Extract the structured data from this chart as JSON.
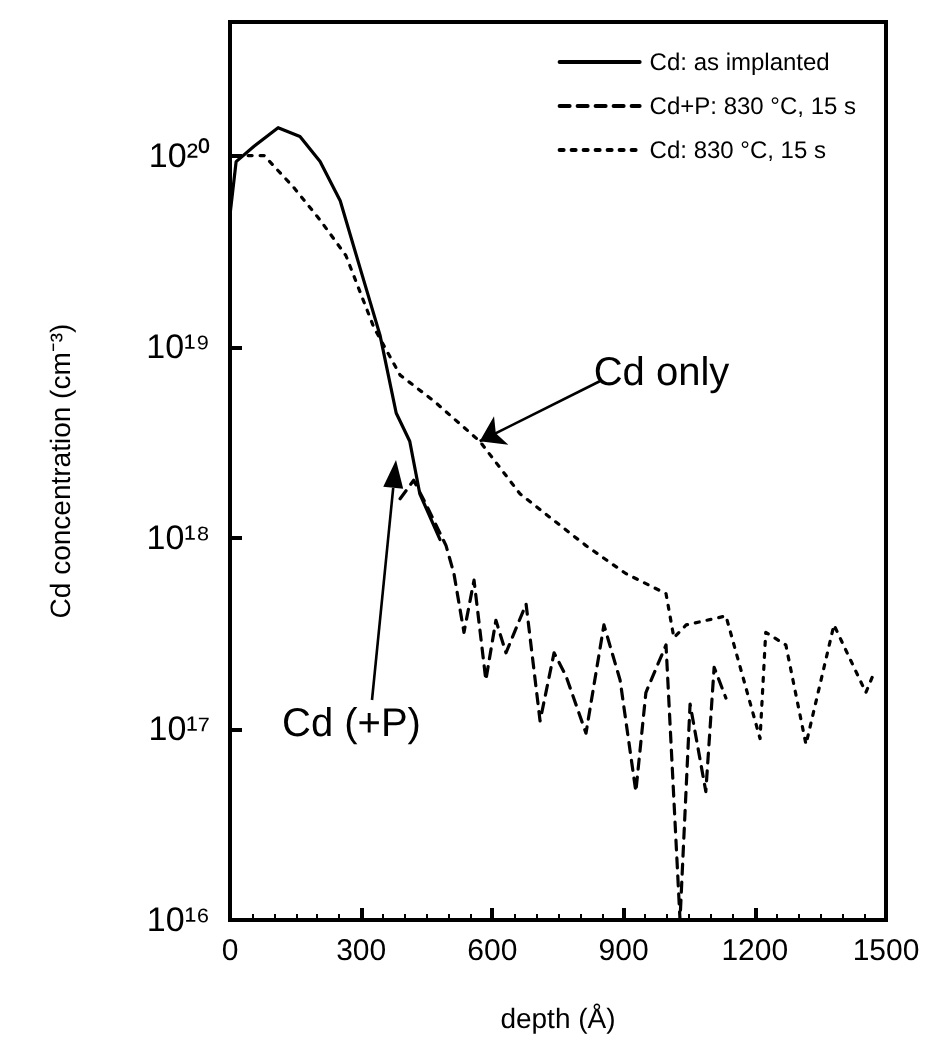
{
  "chart_data": {
    "type": "line",
    "xlabel": "depth (Å)",
    "ylabel": "Cd concentration (cm⁻³)",
    "xlim": [
      0,
      1500
    ],
    "xticks": [
      0,
      300,
      600,
      900,
      1200,
      1500
    ],
    "ylim": [
      1e+16,
      5e+20
    ],
    "log": "y",
    "yticks": [
      {
        "value": 1e+16,
        "label": "10¹⁶"
      },
      {
        "value": 1e+17,
        "label": "10¹⁷"
      },
      {
        "value": 1e+18,
        "label": "10¹⁸"
      },
      {
        "value": 1e+19,
        "label": "10¹⁹"
      },
      {
        "value": 1e+20,
        "label": "10²⁰"
      }
    ],
    "grid": false,
    "legend": "top right",
    "marker": "none",
    "series": [
      {
        "name": "Cd: as implanted",
        "color": "#000000",
        "line_style": "solid",
        "x": [
          0,
          14,
          55,
          110,
          160,
          206,
          252,
          297,
          343,
          380,
          411,
          434,
          480
        ],
        "values": [
          4.9e+19,
          9.3e+19,
          1.12e+20,
          1.4e+20,
          1.26e+20,
          9.3e+19,
          5.8e+19,
          2.6e+19,
          1.15e+19,
          4.5e+18,
          3.2e+18,
          1.7e+18,
          9.8e+17
        ]
      },
      {
        "name": "Cd+P: 830 °C, 15 s",
        "color": "#000000",
        "line_style": "dashed",
        "x": [
          389,
          420,
          448,
          494,
          512,
          535,
          558,
          585,
          608,
          631,
          677,
          709,
          741,
          768,
          814,
          855,
          892,
          928,
          951,
          997,
          1029,
          1052,
          1088,
          1107,
          1134
        ],
        "values": [
          1.6e+18,
          2e+18,
          1.5e+18,
          9.1e+17,
          6.5e+17,
          3.2e+17,
          6e+17,
          1.8e+17,
          3.7e+17,
          2.5e+17,
          4.5e+17,
          1.1e+17,
          2.5e+17,
          1.9e+17,
          9.5e+16,
          3.5e+17,
          1.8e+17,
          4.7e+16,
          1.55e+17,
          2.75e+17,
          1e+16,
          1.35e+17,
          4.7e+16,
          2.1e+17,
          1.45e+17
        ]
      },
      {
        "name": "Cd: 830 °C, 15 s",
        "color": "#000000",
        "line_style": "dotted",
        "x": [
          14,
          78,
          146,
          206,
          265,
          329,
          389,
          466,
          571,
          663,
          741,
          814,
          905,
          997,
          1015,
          1043,
          1134,
          1212,
          1225,
          1271,
          1317,
          1381,
          1454,
          1472
        ],
        "values": [
          1e+20,
          1e+20,
          6.8e+19,
          4.6e+19,
          3e+19,
          1.26e+19,
          7.1e+18,
          5.2e+18,
          3.2e+18,
          1.7e+18,
          1.23e+18,
          9.1e+17,
          6.5e+17,
          5.1e+17,
          3e+17,
          3.5e+17,
          3.9e+17,
          8.9e+16,
          3.2e+17,
          2.75e+17,
          8.3e+16,
          3.5e+17,
          1.55e+17,
          1.95e+17
        ]
      }
    ],
    "annotations": [
      {
        "text": "Cd only",
        "x": 571,
        "y": 3.2e+18
      },
      "Cd (+P)"
    ]
  }
}
